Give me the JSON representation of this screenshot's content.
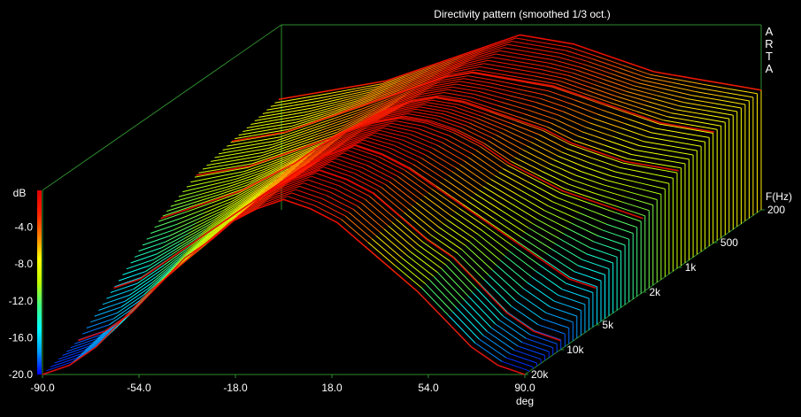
{
  "chart_data": {
    "type": "surface-3d-waterfall",
    "title": "Directivity pattern (smoothed 1/3 oct.)",
    "brand_letters": [
      "A",
      "R",
      "T",
      "A"
    ],
    "x_axis": {
      "label": "deg",
      "range": [
        -90,
        90
      ],
      "ticks": [
        "-90.0",
        "-54.0",
        "-18.0",
        "18.0",
        "54.0",
        "90.0"
      ]
    },
    "z_axis": {
      "label": "dB",
      "range": [
        -20,
        0
      ],
      "ticks": [
        "-4.0",
        "-8.0",
        "-12.0",
        "-16.0",
        "-20.0"
      ]
    },
    "freq_axis": {
      "label": "F(Hz)",
      "scale": "log",
      "range": [
        200,
        20000
      ],
      "ticks": [
        "200",
        "500",
        "1k",
        "2k",
        "5k",
        "10k",
        "20k"
      ]
    },
    "colormap": [
      "#0000ff",
      "#00a0ff",
      "#00ffff",
      "#40ff80",
      "#c0ff00",
      "#ffff00",
      "#ff8000",
      "#ff2000",
      "#e00000"
    ],
    "grid_color": "#2e8b2e",
    "angles_deg": [
      -90,
      -80,
      -70,
      -60,
      -50,
      -40,
      -30,
      -20,
      -10,
      0,
      10,
      20,
      30,
      40,
      50,
      60,
      70,
      80,
      90
    ],
    "series": [
      {
        "freq_hz": 200,
        "db": [
          -8,
          -7.5,
          -7,
          -6.5,
          -6,
          -5,
          -4,
          -3,
          -2,
          -1,
          -1.5,
          -2,
          -3,
          -4,
          -5,
          -5.5,
          -6,
          -6.5,
          -7
        ]
      },
      {
        "freq_hz": 500,
        "db": [
          -9,
          -8.5,
          -8,
          -7,
          -6,
          -5,
          -4,
          -3,
          -2,
          -1.5,
          -2,
          -2.5,
          -3,
          -4,
          -5,
          -6,
          -7,
          -7.5,
          -8
        ]
      },
      {
        "freq_hz": 1000,
        "db": [
          -10,
          -9.5,
          -9,
          -8,
          -7,
          -6,
          -4.5,
          -3,
          -2,
          -1.5,
          -2,
          -3,
          -4,
          -5,
          -6.5,
          -7.5,
          -8.5,
          -9,
          -9.5
        ]
      },
      {
        "freq_hz": 2000,
        "db": [
          -12,
          -11,
          -10,
          -9,
          -7.5,
          -6,
          -4,
          -2.5,
          -1.5,
          -1,
          -1.5,
          -2.5,
          -4,
          -6,
          -7.5,
          -9,
          -10,
          -11,
          -12
        ]
      },
      {
        "freq_hz": 5000,
        "db": [
          -16,
          -15,
          -13,
          -11,
          -9,
          -7,
          -5,
          -3,
          -1.5,
          -0.5,
          -1.5,
          -3,
          -5,
          -7,
          -9,
          -11,
          -13,
          -15,
          -16
        ]
      },
      {
        "freq_hz": 10000,
        "db": [
          -19,
          -18,
          -16,
          -13,
          -10,
          -8,
          -5.5,
          -3,
          -1.5,
          -0.5,
          -1.5,
          -3,
          -5.5,
          -8,
          -10,
          -13,
          -16,
          -18,
          -19
        ]
      },
      {
        "freq_hz": 20000,
        "db": [
          -20,
          -19,
          -17,
          -14,
          -11,
          -8.5,
          -6,
          -3.5,
          -2,
          -1,
          -2,
          -3.5,
          -6,
          -8.5,
          -11,
          -14,
          -17,
          -19,
          -20
        ]
      }
    ],
    "grid": true,
    "legend": "colorbar-left"
  }
}
